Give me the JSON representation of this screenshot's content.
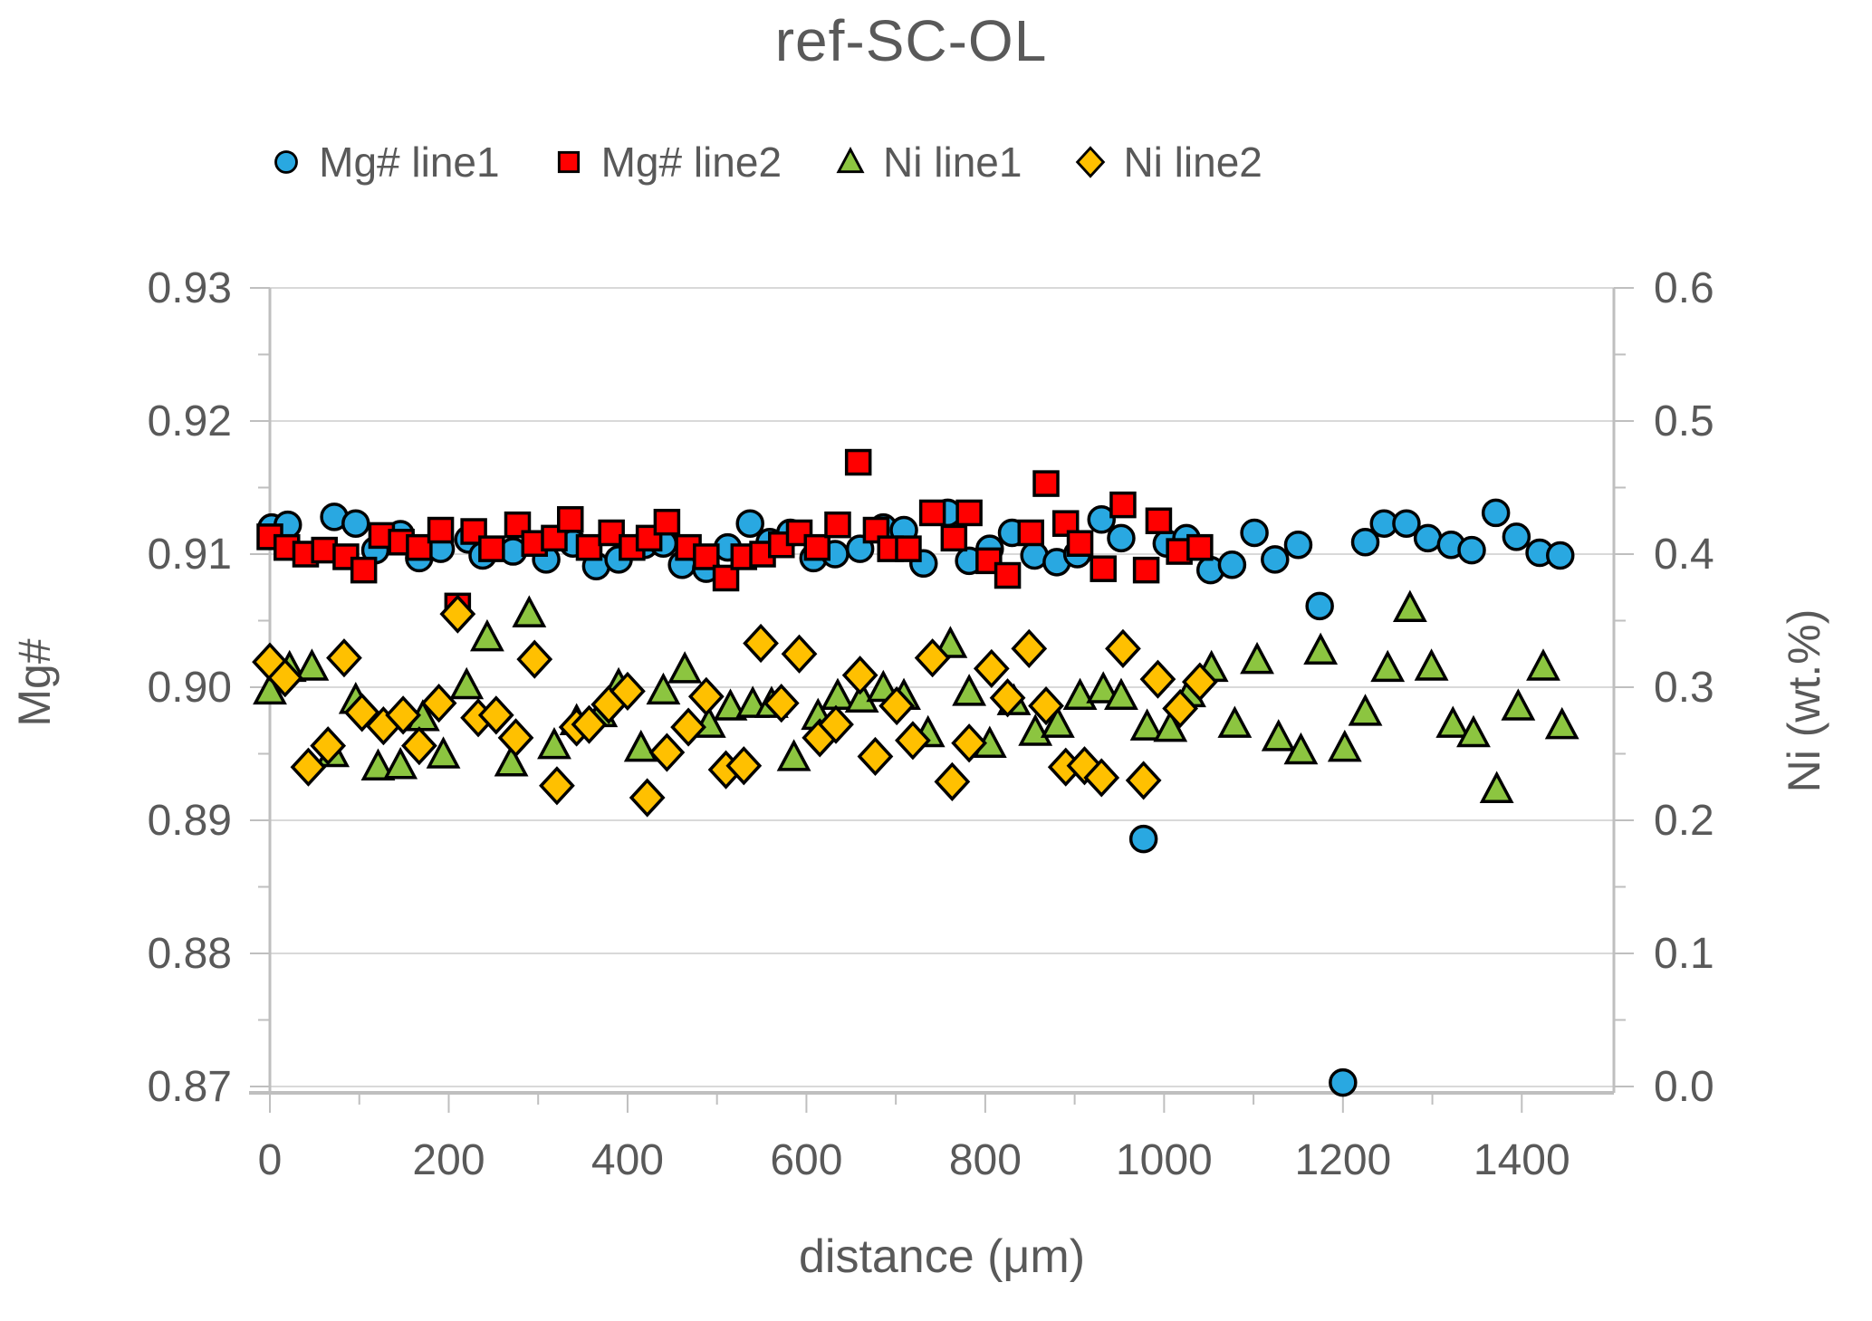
{
  "chart_data": {
    "type": "scatter",
    "title": "ref-SC-OL",
    "xlabel": "distance (μm)",
    "ylabel_left": "Mg#",
    "ylabel_right": "Ni (wt.%)",
    "legend_position": "top",
    "grid": "horizontal-major",
    "axes": {
      "left": {
        "title": "Mg#",
        "min": 0.87,
        "max": 0.93,
        "minor_step": 0.005,
        "tick_values": [
          0.93,
          0.92,
          0.91,
          0.9,
          0.89,
          0.88,
          0.87
        ],
        "tick_labels": [
          "0.93",
          "0.92",
          "0.91",
          "0.90",
          "0.89",
          "0.88",
          "0.87"
        ]
      },
      "right": {
        "title": "Ni (wt.%)",
        "min": 0.0,
        "max": 0.6,
        "minor_step": 0.05,
        "tick_values": [
          0.6,
          0.5,
          0.4,
          0.3,
          0.2,
          0.1,
          0.0
        ],
        "tick_labels": [
          "0.6",
          "0.5",
          "0.4",
          "0.3",
          "0.2",
          "0.1",
          "0.0"
        ]
      },
      "x": {
        "title": "distance (μm)",
        "min": 0,
        "max": 1503,
        "minor_step": 100,
        "tick_values": [
          0,
          200,
          400,
          600,
          800,
          1000,
          1200,
          1400
        ],
        "tick_labels": [
          "0",
          "200",
          "400",
          "600",
          "800",
          "1000",
          "1200",
          "1400"
        ]
      }
    },
    "series": [
      {
        "name": "Mg# line1",
        "axis": "left",
        "marker": "circle",
        "color": "#29A8E1",
        "outline": "#000000",
        "points": [
          [
            2,
            0.912
          ],
          [
            20,
            0.9122
          ],
          [
            72,
            0.9128
          ],
          [
            96,
            0.9123
          ],
          [
            118,
            0.9103
          ],
          [
            146,
            0.9115
          ],
          [
            167,
            0.9097
          ],
          [
            191,
            0.9104
          ],
          [
            222,
            0.9111
          ],
          [
            238,
            0.9099
          ],
          [
            272,
            0.9102
          ],
          [
            309,
            0.9096
          ],
          [
            339,
            0.9108
          ],
          [
            365,
            0.9091
          ],
          [
            390,
            0.9096
          ],
          [
            419,
            0.9107
          ],
          [
            440,
            0.9108
          ],
          [
            461,
            0.9092
          ],
          [
            488,
            0.9089
          ],
          [
            512,
            0.9105
          ],
          [
            537,
            0.9123
          ],
          [
            559,
            0.9109
          ],
          [
            582,
            0.9116
          ],
          [
            608,
            0.9097
          ],
          [
            632,
            0.91
          ],
          [
            660,
            0.9104
          ],
          [
            686,
            0.912
          ],
          [
            709,
            0.9118
          ],
          [
            731,
            0.9093
          ],
          [
            758,
            0.9131
          ],
          [
            782,
            0.9095
          ],
          [
            805,
            0.9104
          ],
          [
            830,
            0.9116
          ],
          [
            855,
            0.9099
          ],
          [
            880,
            0.9094
          ],
          [
            903,
            0.91
          ],
          [
            930,
            0.9126
          ],
          [
            952,
            0.9112
          ],
          [
            977,
            0.8886
          ],
          [
            1003,
            0.9108
          ],
          [
            1025,
            0.9112
          ],
          [
            1052,
            0.9088
          ],
          [
            1076,
            0.9092
          ],
          [
            1101,
            0.9116
          ],
          [
            1124,
            0.9096
          ],
          [
            1150,
            0.9107
          ],
          [
            1174,
            0.9061
          ],
          [
            1200,
            0.8703
          ],
          [
            1225,
            0.9109
          ],
          [
            1246,
            0.9123
          ],
          [
            1271,
            0.9123
          ],
          [
            1295,
            0.9112
          ],
          [
            1321,
            0.9107
          ],
          [
            1344,
            0.9103
          ],
          [
            1371,
            0.9131
          ],
          [
            1394,
            0.9113
          ],
          [
            1420,
            0.9101
          ],
          [
            1443,
            0.9099
          ]
        ]
      },
      {
        "name": "Mg# line2",
        "axis": "left",
        "marker": "square",
        "color": "#FF0000",
        "outline": "#000000",
        "points": [
          [
            0,
            0.9113
          ],
          [
            19,
            0.9105
          ],
          [
            40,
            0.91
          ],
          [
            61,
            0.9103
          ],
          [
            85,
            0.9098
          ],
          [
            105,
            0.9088
          ],
          [
            125,
            0.9114
          ],
          [
            147,
            0.9109
          ],
          [
            167,
            0.9105
          ],
          [
            191,
            0.9118
          ],
          [
            210,
            0.9061
          ],
          [
            228,
            0.9117
          ],
          [
            248,
            0.9104
          ],
          [
            277,
            0.9122
          ],
          [
            296,
            0.9108
          ],
          [
            318,
            0.9112
          ],
          [
            336,
            0.9126
          ],
          [
            357,
            0.9105
          ],
          [
            382,
            0.9116
          ],
          [
            405,
            0.9105
          ],
          [
            424,
            0.9112
          ],
          [
            444,
            0.9124
          ],
          [
            468,
            0.9105
          ],
          [
            488,
            0.9098
          ],
          [
            510,
            0.9082
          ],
          [
            530,
            0.9098
          ],
          [
            551,
            0.91
          ],
          [
            572,
            0.9107
          ],
          [
            592,
            0.9116
          ],
          [
            612,
            0.9105
          ],
          [
            635,
            0.9122
          ],
          [
            658,
            0.9169
          ],
          [
            678,
            0.9118
          ],
          [
            694,
            0.9104
          ],
          [
            714,
            0.9104
          ],
          [
            741,
            0.9131
          ],
          [
            765,
            0.9112
          ],
          [
            782,
            0.9131
          ],
          [
            804,
            0.9095
          ],
          [
            825,
            0.9084
          ],
          [
            851,
            0.9116
          ],
          [
            868,
            0.9153
          ],
          [
            890,
            0.9123
          ],
          [
            906,
            0.9108
          ],
          [
            932,
            0.9089
          ],
          [
            954,
            0.9137
          ],
          [
            980,
            0.9088
          ],
          [
            994,
            0.9125
          ],
          [
            1017,
            0.9102
          ],
          [
            1040,
            0.9105
          ]
        ]
      },
      {
        "name": "Ni line1",
        "axis": "right",
        "marker": "triangle",
        "color": "#8CC540",
        "outline": "#000000",
        "points": [
          [
            0,
            0.297
          ],
          [
            22,
            0.314
          ],
          [
            47,
            0.315
          ],
          [
            70,
            0.25
          ],
          [
            96,
            0.29
          ],
          [
            121,
            0.24
          ],
          [
            146,
            0.241
          ],
          [
            171,
            0.277
          ],
          [
            194,
            0.249
          ],
          [
            220,
            0.301
          ],
          [
            243,
            0.337
          ],
          [
            270,
            0.243
          ],
          [
            290,
            0.355
          ],
          [
            318,
            0.256
          ],
          [
            343,
            0.274
          ],
          [
            370,
            0.28
          ],
          [
            390,
            0.301
          ],
          [
            415,
            0.254
          ],
          [
            440,
            0.297
          ],
          [
            464,
            0.313
          ],
          [
            491,
            0.272
          ],
          [
            515,
            0.285
          ],
          [
            540,
            0.287
          ],
          [
            561,
            0.287
          ],
          [
            586,
            0.247
          ],
          [
            613,
            0.278
          ],
          [
            635,
            0.293
          ],
          [
            662,
            0.291
          ],
          [
            686,
            0.299
          ],
          [
            709,
            0.293
          ],
          [
            736,
            0.265
          ],
          [
            761,
            0.332
          ],
          [
            782,
            0.296
          ],
          [
            805,
            0.257
          ],
          [
            832,
            0.289
          ],
          [
            856,
            0.266
          ],
          [
            881,
            0.272
          ],
          [
            906,
            0.293
          ],
          [
            932,
            0.298
          ],
          [
            952,
            0.293
          ],
          [
            981,
            0.27
          ],
          [
            1007,
            0.269
          ],
          [
            1028,
            0.295
          ],
          [
            1053,
            0.314
          ],
          [
            1079,
            0.272
          ],
          [
            1104,
            0.32
          ],
          [
            1128,
            0.262
          ],
          [
            1153,
            0.252
          ],
          [
            1175,
            0.327
          ],
          [
            1202,
            0.254
          ],
          [
            1225,
            0.281
          ],
          [
            1250,
            0.314
          ],
          [
            1275,
            0.359
          ],
          [
            1299,
            0.315
          ],
          [
            1323,
            0.272
          ],
          [
            1346,
            0.265
          ],
          [
            1372,
            0.223
          ],
          [
            1396,
            0.285
          ],
          [
            1424,
            0.315
          ],
          [
            1445,
            0.271
          ]
        ]
      },
      {
        "name": "Ni line2",
        "axis": "right",
        "marker": "diamond",
        "color": "#FFC000",
        "outline": "#000000",
        "points": [
          [
            0,
            0.319
          ],
          [
            17,
            0.307
          ],
          [
            43,
            0.24
          ],
          [
            65,
            0.256
          ],
          [
            83,
            0.322
          ],
          [
            103,
            0.281
          ],
          [
            127,
            0.271
          ],
          [
            149,
            0.279
          ],
          [
            167,
            0.256
          ],
          [
            189,
            0.288
          ],
          [
            210,
            0.355
          ],
          [
            233,
            0.277
          ],
          [
            253,
            0.279
          ],
          [
            275,
            0.262
          ],
          [
            296,
            0.321
          ],
          [
            321,
            0.226
          ],
          [
            343,
            0.27
          ],
          [
            357,
            0.272
          ],
          [
            379,
            0.287
          ],
          [
            400,
            0.297
          ],
          [
            422,
            0.217
          ],
          [
            444,
            0.251
          ],
          [
            468,
            0.27
          ],
          [
            488,
            0.293
          ],
          [
            510,
            0.238
          ],
          [
            530,
            0.241
          ],
          [
            549,
            0.333
          ],
          [
            572,
            0.288
          ],
          [
            592,
            0.325
          ],
          [
            615,
            0.262
          ],
          [
            633,
            0.272
          ],
          [
            660,
            0.309
          ],
          [
            677,
            0.248
          ],
          [
            701,
            0.286
          ],
          [
            719,
            0.26
          ],
          [
            741,
            0.322
          ],
          [
            763,
            0.229
          ],
          [
            782,
            0.258
          ],
          [
            807,
            0.314
          ],
          [
            825,
            0.292
          ],
          [
            849,
            0.329
          ],
          [
            868,
            0.286
          ],
          [
            890,
            0.24
          ],
          [
            911,
            0.241
          ],
          [
            930,
            0.232
          ],
          [
            954,
            0.329
          ],
          [
            977,
            0.23
          ],
          [
            993,
            0.306
          ],
          [
            1018,
            0.284
          ],
          [
            1040,
            0.304
          ]
        ]
      }
    ],
    "style_colors": {
      "text": "#595959",
      "gridline": "#D9D9D9",
      "axis_line": "#BFBFBF"
    }
  }
}
